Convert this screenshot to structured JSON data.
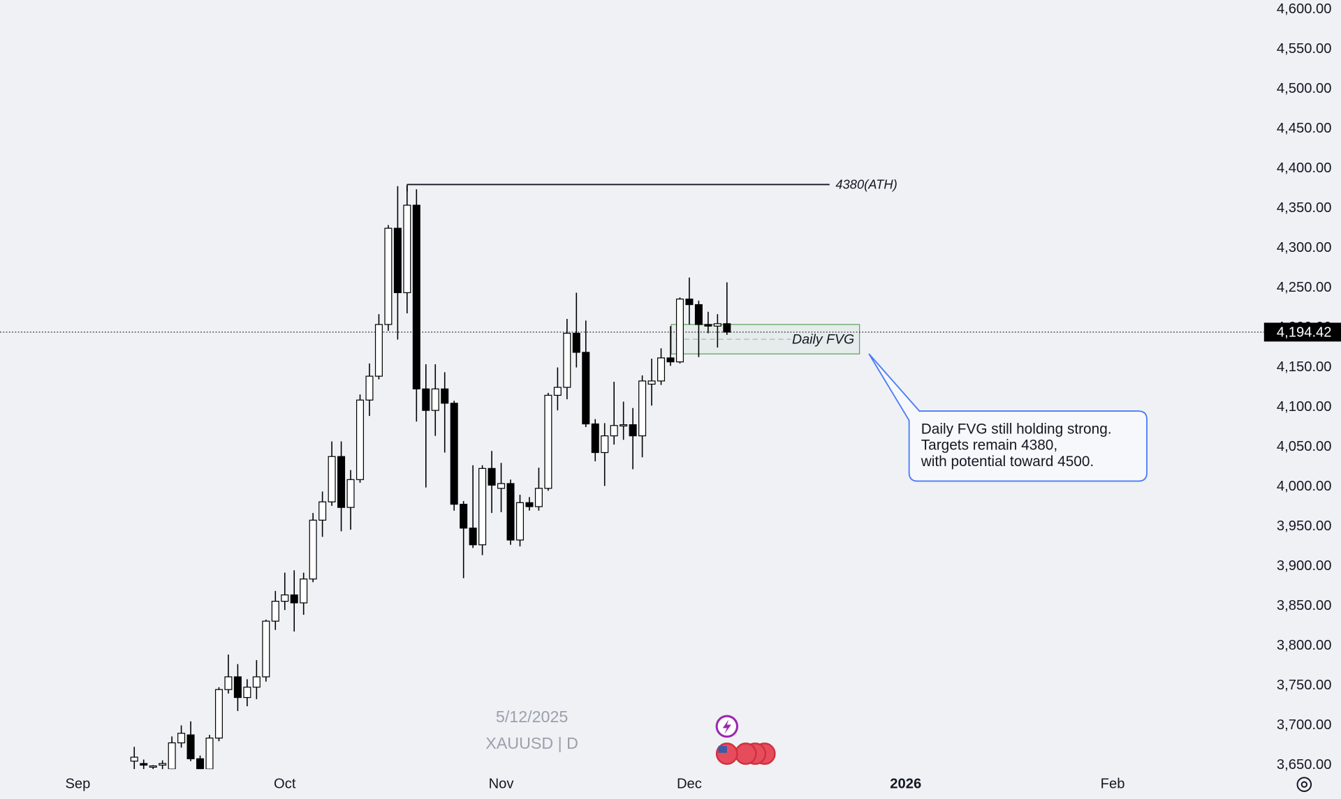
{
  "chart_data": {
    "type": "candlestick",
    "symbol": "XAUUSD | D",
    "date_label": "5/12/2025",
    "up_color": "#ffffff",
    "down_color": "#000000",
    "open": [
      3655,
      3652,
      3648,
      3650,
      3645,
      3678,
      3688,
      3658,
      3645,
      3684,
      3745,
      3761,
      3735,
      3748,
      3761,
      3831,
      3856,
      3864,
      3854,
      3884,
      3958,
      3981,
      4038,
      3974,
      4009,
      4109,
      4139,
      4204,
      4325,
      4244,
      4354,
      4123,
      4096,
      4123,
      4105,
      3978,
      3948,
      3927,
      4023,
      3998,
      4004,
      3933,
      3980,
      3975,
      3998,
      4115,
      4125,
      4193,
      4169,
      4079,
      4043,
      4064,
      4077,
      4078,
      4064,
      4129,
      4133,
      4162,
      4157,
      4236,
      4229,
      4204,
      4202,
      4205
    ],
    "high": [
      3673,
      3657,
      3650,
      3656,
      3686,
      3700,
      3705,
      3662,
      3688,
      3748,
      3789,
      3777,
      3758,
      3782,
      3833,
      3869,
      3892,
      3895,
      3892,
      3967,
      3994,
      4057,
      4057,
      4021,
      4116,
      4155,
      4217,
      4329,
      4378,
      4378,
      4374,
      4154,
      4154,
      4144,
      4108,
      3982,
      4027,
      4027,
      4045,
      4030,
      4009,
      3990,
      3987,
      4024,
      4118,
      4150,
      4211,
      4244,
      4209,
      4085,
      4080,
      4132,
      4107,
      4099,
      4140,
      4161,
      4174,
      4202,
      4238,
      4263,
      4234,
      4220,
      4217,
      4257
    ],
    "low": [
      3640,
      3645,
      3645,
      3640,
      3640,
      3672,
      3655,
      3640,
      3640,
      3680,
      3740,
      3718,
      3724,
      3733,
      3755,
      3820,
      3845,
      3818,
      3839,
      3880,
      3937,
      3976,
      3944,
      3946,
      4005,
      4089,
      4135,
      4196,
      4185,
      4218,
      4082,
      3999,
      4064,
      4043,
      3970,
      3885,
      3923,
      3914,
      3967,
      3968,
      3927,
      3925,
      3970,
      3970,
      3995,
      4096,
      4110,
      4150,
      4075,
      4032,
      4001,
      4053,
      4059,
      4022,
      4037,
      4102,
      4128,
      4152,
      4155,
      4204,
      4163,
      4193,
      4175,
      4191
    ],
    "close": [
      3660,
      3650,
      3649,
      3652,
      3678,
      3690,
      3658,
      3645,
      3684,
      3745,
      3761,
      3735,
      3748,
      3761,
      3831,
      3856,
      3864,
      3854,
      3884,
      3958,
      3981,
      4038,
      3974,
      4009,
      4109,
      4139,
      4204,
      4325,
      4244,
      4354,
      4123,
      4096,
      4123,
      4105,
      3978,
      3948,
      3927,
      4023,
      4002,
      4004,
      3933,
      3980,
      3975,
      3998,
      4115,
      4125,
      4193,
      4169,
      4079,
      4043,
      4064,
      4077,
      4078,
      4064,
      4133,
      4133,
      4162,
      4157,
      4236,
      4229,
      4204,
      4202,
      4205,
      4194.42
    ],
    "x_labels": [
      "Sep",
      "Oct",
      "Nov",
      "Dec",
      "2026",
      "Feb"
    ],
    "ylim": [
      3645,
      4612
    ],
    "yticks": [
      {
        "value": 3650,
        "label": "3,650.00"
      },
      {
        "value": 3700,
        "label": "3,700.00"
      },
      {
        "value": 3750,
        "label": "3,750.00"
      },
      {
        "value": 3800,
        "label": "3,800.00"
      },
      {
        "value": 3850,
        "label": "3,850.00"
      },
      {
        "value": 3900,
        "label": "3,900.00"
      },
      {
        "value": 3950,
        "label": "3,950.00"
      },
      {
        "value": 4000,
        "label": "4,000.00"
      },
      {
        "value": 4050,
        "label": "4,050.00"
      },
      {
        "value": 4100,
        "label": "4,100.00"
      },
      {
        "value": 4150,
        "label": "4,150.00"
      },
      {
        "value": 4200,
        "label": "4,200.00"
      },
      {
        "value": 4250,
        "label": "4,250.00"
      },
      {
        "value": 4300,
        "label": "4,300.00"
      },
      {
        "value": 4350,
        "label": "4,350.00"
      },
      {
        "value": 4400,
        "label": "4,400.00"
      },
      {
        "value": 4450,
        "label": "4,450.00"
      },
      {
        "value": 4500,
        "label": "4,500.00"
      },
      {
        "value": 4550,
        "label": "4,550.00"
      },
      {
        "value": 4600,
        "label": "4,600.00"
      }
    ],
    "last_price": {
      "value": 4194.42,
      "label": "4,194.42"
    },
    "ath_line": {
      "value": 4380,
      "label": "4380(ATH)"
    },
    "fvg_zone": {
      "label": "Daily FVG",
      "top": 4204,
      "bottom": 4167,
      "color": "#5aa25a"
    },
    "callout": {
      "lines": [
        "Daily FVG still holding strong.",
        "Targets remain 4380,",
        "with potential toward 4500."
      ],
      "color": "#4a7cf7"
    }
  }
}
